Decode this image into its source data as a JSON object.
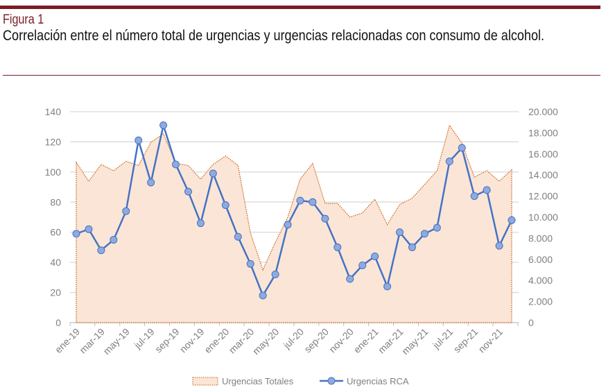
{
  "header": {
    "figure_label": "Figura 1",
    "caption": "Correlación entre el número total de urgencias y urgencias relacionadas con consumo de alcohol."
  },
  "chart_data": {
    "type": "area+line",
    "title": "Correlación entre el número total de urgencias y urgencias relacionadas con consumo de alcohol.",
    "categories": [
      "ene-19",
      "feb-19",
      "mar-19",
      "abr-19",
      "may-19",
      "jun-19",
      "jul-19",
      "ago-19",
      "sep-19",
      "oct-19",
      "nov-19",
      "dic-19",
      "ene-20",
      "feb-20",
      "mar-20",
      "abr-20",
      "may-20",
      "jun-20",
      "jul-20",
      "ago-20",
      "sep-20",
      "oct-20",
      "nov-20",
      "dic-20",
      "ene-21",
      "feb-21",
      "mar-21",
      "abr-21",
      "may-21",
      "jun-21",
      "jul-21",
      "ago-21",
      "sep-21",
      "oct-21",
      "nov-21",
      "dic-21"
    ],
    "x_tick_labels": [
      "ene-19",
      "mar-19",
      "may-19",
      "jul-19",
      "sep-19",
      "nov-19",
      "ene-20",
      "mar-20",
      "may-20",
      "jul-20",
      "sep-20",
      "nov-20",
      "ene-21",
      "mar-21",
      "may-21",
      "jul-21",
      "sep-21",
      "nov-21"
    ],
    "y_left": {
      "ylim": [
        0,
        140
      ],
      "ticks": [
        "0",
        "20",
        "40",
        "60",
        "80",
        "100",
        "120",
        "140"
      ]
    },
    "y_right": {
      "ylim": [
        0,
        20000
      ],
      "ticks": [
        "0",
        "2.000",
        "4.000",
        "6.000",
        "8.000",
        "10.000",
        "12.000",
        "14.000",
        "16.000",
        "18.000",
        "20.000"
      ]
    },
    "series": [
      {
        "name": "Urgencias Totales",
        "axis": "right",
        "type": "area",
        "color": "#f4b183",
        "fill": "#fbe5d6",
        "values": [
          15200,
          13400,
          15000,
          14400,
          15300,
          14900,
          17100,
          17900,
          15100,
          14900,
          13600,
          15000,
          15800,
          14900,
          8500,
          5000,
          7600,
          10000,
          13600,
          15100,
          11300,
          11300,
          10000,
          10400,
          11700,
          9300,
          11200,
          11800,
          13100,
          14400,
          18700,
          17000,
          13800,
          14400,
          13400,
          14500
        ]
      },
      {
        "name": "Urgencias RCA",
        "axis": "left",
        "type": "line",
        "color": "#4472c4",
        "marker": "#8faadc",
        "values": [
          59,
          62,
          48,
          55,
          74,
          121,
          93,
          131,
          105,
          87,
          66,
          99,
          78,
          57,
          39,
          18,
          32,
          65,
          81,
          80,
          69,
          50,
          29,
          38,
          44,
          24,
          60,
          50,
          59,
          63,
          107,
          116,
          84,
          88,
          51,
          68
        ]
      }
    ],
    "grid": true,
    "legend": "bottom"
  }
}
